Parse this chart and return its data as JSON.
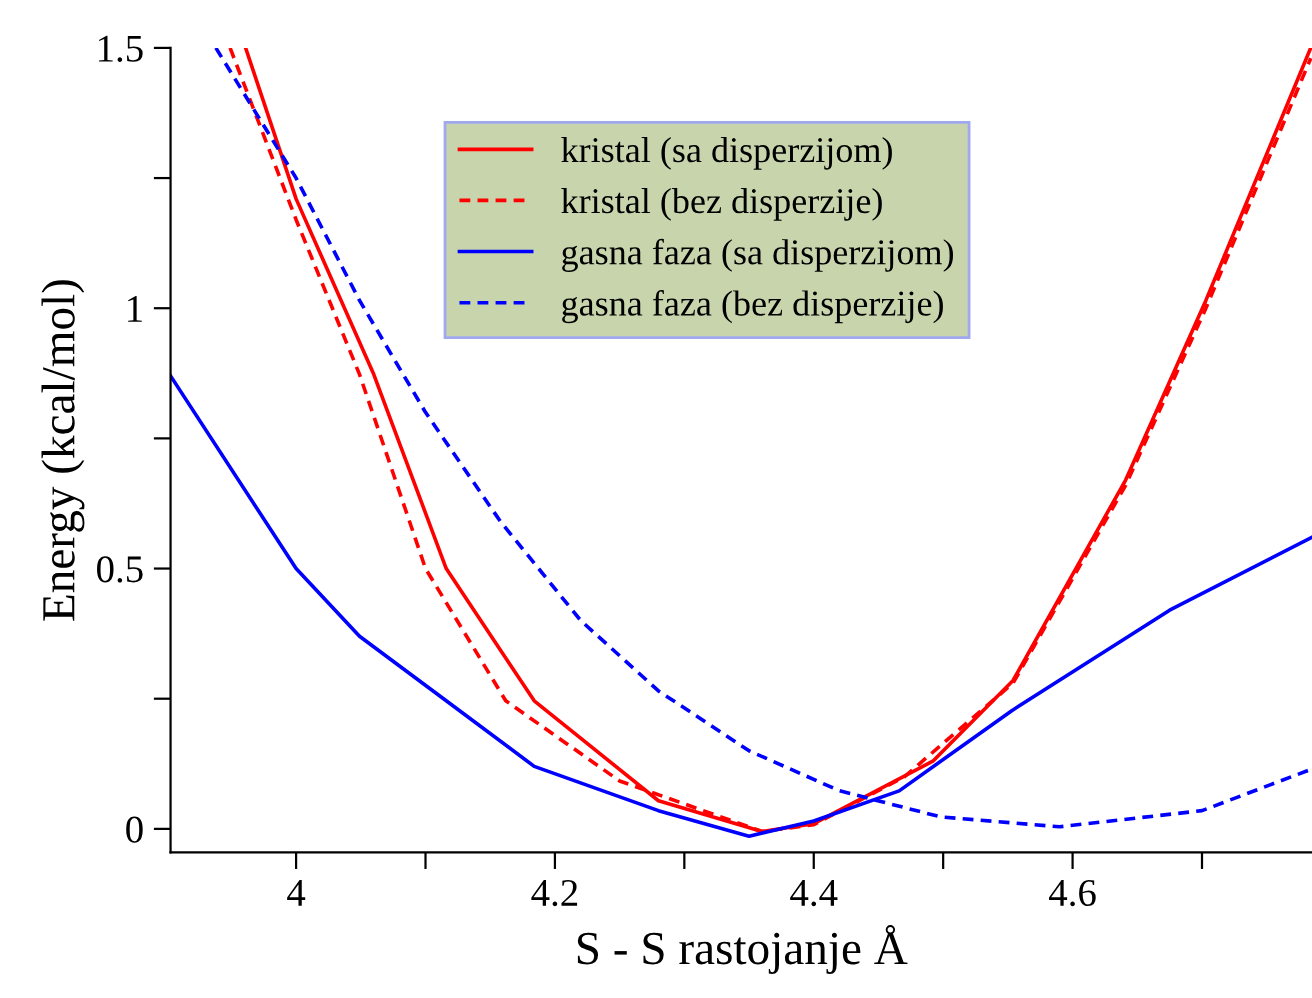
{
  "chart_data": {
    "type": "line",
    "xlabel": "S - S rastojanje Å",
    "ylabel": "Energy (kcal/mol)",
    "xlim": [
      3.903,
      4.785
    ],
    "ylim": [
      -0.045,
      1.5
    ],
    "xticks": [
      4,
      {
        "value": 4.1,
        "label": null
      },
      4.2,
      {
        "value": 4.3,
        "label": null
      },
      4.4,
      {
        "value": 4.5,
        "label": null
      },
      4.6,
      {
        "value": 4.7,
        "label": null
      }
    ],
    "yticks": [
      0,
      {
        "value": 0.25,
        "label": null
      },
      0.5,
      {
        "value": 0.75,
        "label": null
      },
      1,
      {
        "value": 1.25,
        "label": null
      },
      1.5
    ],
    "grid": false,
    "legend": "top",
    "marker": "none",
    "series": [
      {
        "name": "kristal (sa disperzijom)",
        "color": "#ff0000",
        "line_style": "solid",
        "x": [
          3.961,
          4.0,
          4.06,
          4.116,
          4.184,
          4.28,
          4.36,
          4.4,
          4.492,
          4.554,
          4.641,
          4.703,
          4.784
        ],
        "values": [
          1.5,
          1.21,
          0.873,
          0.5,
          0.246,
          0.054,
          -0.005,
          0.01,
          0.13,
          0.285,
          0.67,
          1.015,
          1.5
        ]
      },
      {
        "name": "kristal (bez disperzije)",
        "color": "#ff0000",
        "line_style": "dashed",
        "x": [
          3.949,
          4.0,
          4.049,
          4.1,
          4.162,
          4.25,
          4.36,
          4.4,
          4.47,
          4.554,
          4.641,
          4.703,
          4.784
        ],
        "values": [
          1.5,
          1.17,
          0.873,
          0.5,
          0.246,
          0.092,
          -0.005,
          0.008,
          0.1,
          0.28,
          0.66,
          1.0,
          1.48
        ]
      },
      {
        "name": "gasna faza (sa disperzijom)",
        "color": "#0000ff",
        "line_style": "solid",
        "x": [
          3.903,
          4.0,
          4.049,
          4.116,
          4.184,
          4.28,
          4.35,
          4.4,
          4.466,
          4.553,
          4.675,
          4.785
        ],
        "values": [
          0.87,
          0.5,
          0.37,
          0.246,
          0.12,
          0.035,
          -0.014,
          0.015,
          0.073,
          0.227,
          0.42,
          0.56
        ]
      },
      {
        "name": "gasna faza (bez disperzije)",
        "color": "#0000ff",
        "line_style": "dashed",
        "x": [
          3.938,
          4.0,
          4.049,
          4.1,
          4.158,
          4.22,
          4.28,
          4.35,
          4.42,
          4.498,
          4.59,
          4.7,
          4.785
        ],
        "values": [
          1.5,
          1.25,
          1.015,
          0.8,
          0.59,
          0.4,
          0.265,
          0.15,
          0.073,
          0.023,
          0.004,
          0.035,
          0.115
        ]
      }
    ]
  }
}
